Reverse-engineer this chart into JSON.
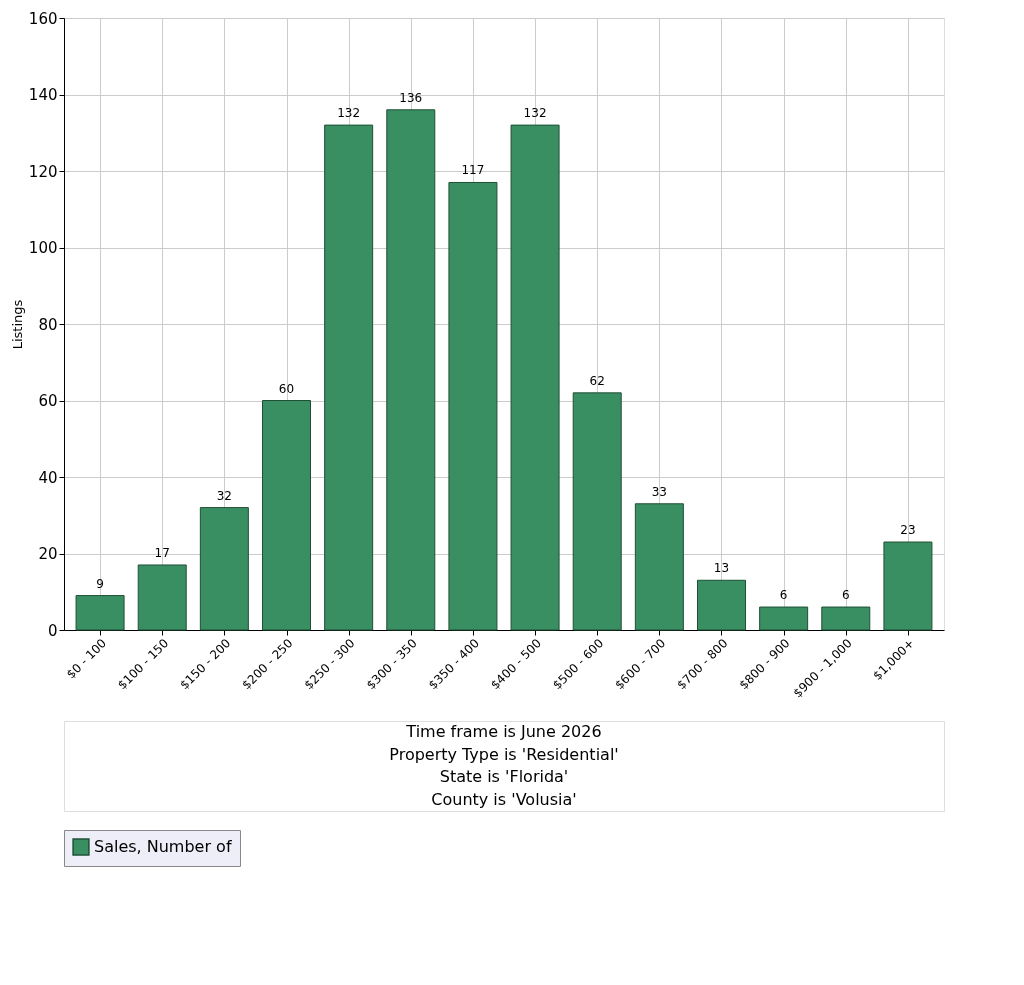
{
  "chart_data": {
    "type": "bar",
    "ylabel": "Listings",
    "categories": [
      "$0 - 100",
      "$100 - 150",
      "$150 - 200",
      "$200 - 250",
      "$250 - 300",
      "$300 - 350",
      "$350 - 400",
      "$400 - 500",
      "$500 - 600",
      "$600 - 700",
      "$700 - 800",
      "$800 - 900",
      "$900 - 1,000",
      "$1,000+"
    ],
    "series": [
      {
        "name": "Sales, Number of",
        "color": "#3a8f62",
        "values": [
          9,
          17,
          32,
          60,
          132,
          136,
          117,
          132,
          62,
          33,
          13,
          6,
          6,
          23
        ]
      }
    ],
    "ylim": [
      0,
      160
    ],
    "yticks": [
      0,
      20,
      40,
      60,
      80,
      100,
      120,
      140,
      160
    ],
    "grid": true,
    "legend": "bottom",
    "data_labels": true,
    "annotations": [
      "Time frame is June 2026",
      "Property Type is 'Residential'",
      "State is 'Florida'",
      "County is 'Volusia'"
    ]
  }
}
